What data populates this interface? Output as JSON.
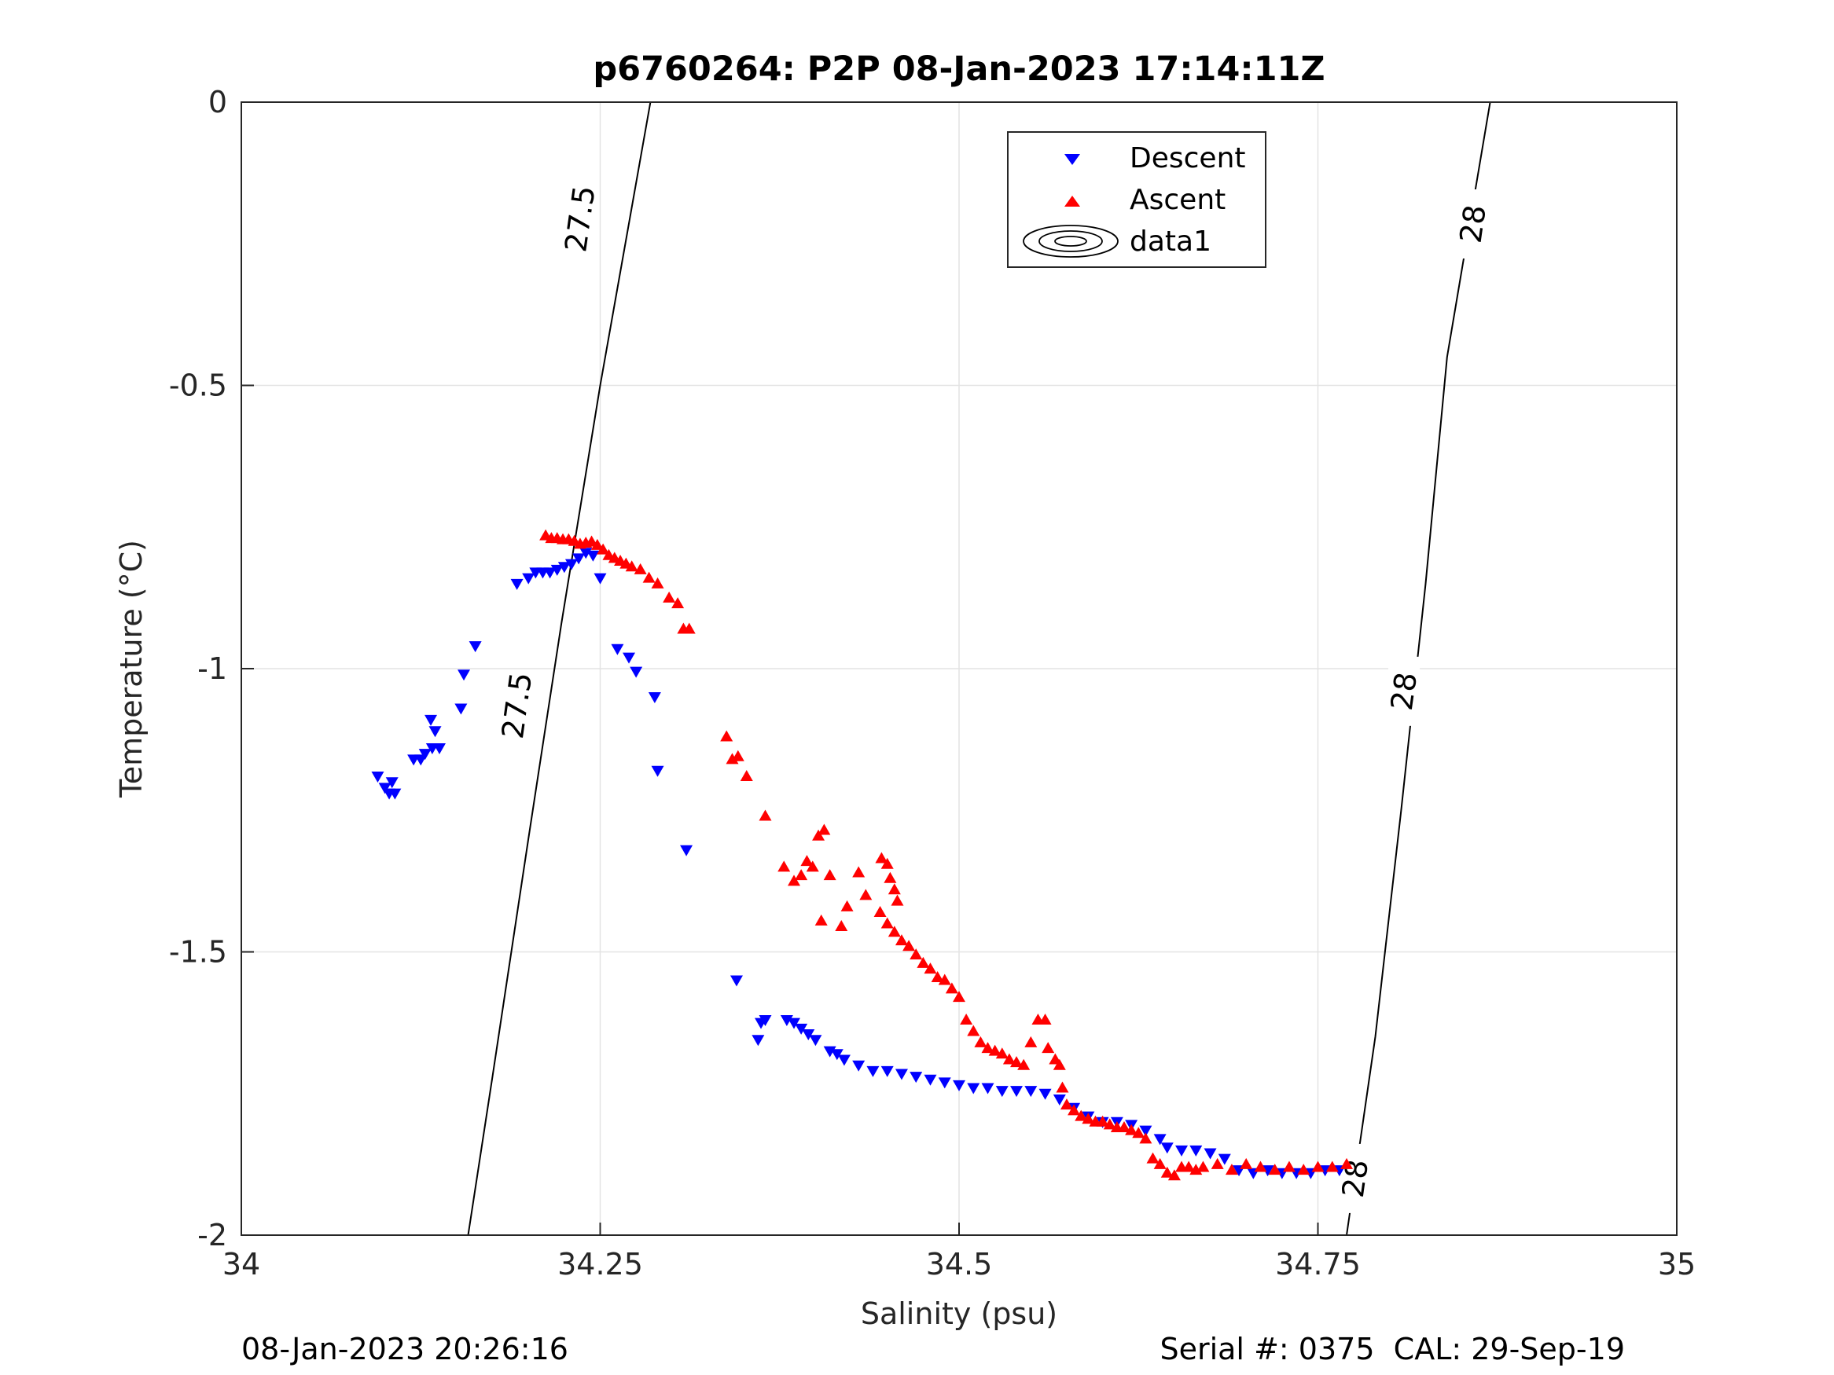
{
  "chart_data": {
    "type": "scatter",
    "title": "p6760264: P2P 08-Jan-2023 17:14:11Z",
    "xlabel": "Salinity (psu)",
    "ylabel": "Temperature (°C)",
    "xlim": [
      34,
      35
    ],
    "ylim": [
      -2,
      0
    ],
    "x_ticks": [
      34,
      34.25,
      34.5,
      34.75,
      35
    ],
    "x_tick_labels": [
      "34",
      "34.25",
      "34.5",
      "34.75",
      "35"
    ],
    "y_ticks": [
      -2,
      -1.5,
      -1,
      -0.5,
      0
    ],
    "y_tick_labels": [
      "-2",
      "-1.5",
      "-1",
      "-0.5",
      "0"
    ],
    "grid": true,
    "legend_position": "top-right",
    "series": [
      {
        "name": "Descent",
        "marker": "triangle-down",
        "color": "#0000ff",
        "points": [
          [
            34.095,
            -1.19
          ],
          [
            34.1,
            -1.21
          ],
          [
            34.103,
            -1.22
          ],
          [
            34.105,
            -1.2
          ],
          [
            34.107,
            -1.22
          ],
          [
            34.12,
            -1.16
          ],
          [
            34.125,
            -1.16
          ],
          [
            34.128,
            -1.15
          ],
          [
            34.133,
            -1.14
          ],
          [
            34.135,
            -1.11
          ],
          [
            34.132,
            -1.09
          ],
          [
            34.138,
            -1.14
          ],
          [
            34.153,
            -1.07
          ],
          [
            34.155,
            -1.01
          ],
          [
            34.163,
            -0.96
          ],
          [
            34.192,
            -0.85
          ],
          [
            34.2,
            -0.84
          ],
          [
            34.205,
            -0.83
          ],
          [
            34.21,
            -0.83
          ],
          [
            34.215,
            -0.83
          ],
          [
            34.22,
            -0.825
          ],
          [
            34.225,
            -0.82
          ],
          [
            34.23,
            -0.815
          ],
          [
            34.235,
            -0.805
          ],
          [
            34.24,
            -0.795
          ],
          [
            34.245,
            -0.8
          ],
          [
            34.25,
            -0.84
          ],
          [
            34.262,
            -0.965
          ],
          [
            34.27,
            -0.98
          ],
          [
            34.275,
            -1.005
          ],
          [
            34.288,
            -1.05
          ],
          [
            34.29,
            -1.18
          ],
          [
            34.31,
            -1.32
          ],
          [
            34.345,
            -1.55
          ],
          [
            34.362,
            -1.625
          ],
          [
            34.365,
            -1.62
          ],
          [
            34.36,
            -1.655
          ],
          [
            34.38,
            -1.62
          ],
          [
            34.385,
            -1.625
          ],
          [
            34.39,
            -1.635
          ],
          [
            34.395,
            -1.645
          ],
          [
            34.4,
            -1.655
          ],
          [
            34.41,
            -1.675
          ],
          [
            34.415,
            -1.68
          ],
          [
            34.42,
            -1.69
          ],
          [
            34.43,
            -1.7
          ],
          [
            34.44,
            -1.71
          ],
          [
            34.45,
            -1.71
          ],
          [
            34.46,
            -1.715
          ],
          [
            34.47,
            -1.72
          ],
          [
            34.48,
            -1.725
          ],
          [
            34.49,
            -1.73
          ],
          [
            34.5,
            -1.735
          ],
          [
            34.51,
            -1.74
          ],
          [
            34.52,
            -1.74
          ],
          [
            34.53,
            -1.745
          ],
          [
            34.54,
            -1.745
          ],
          [
            34.55,
            -1.745
          ],
          [
            34.56,
            -1.75
          ],
          [
            34.57,
            -1.76
          ],
          [
            34.58,
            -1.775
          ],
          [
            34.59,
            -1.79
          ],
          [
            34.6,
            -1.8
          ],
          [
            34.61,
            -1.8
          ],
          [
            34.62,
            -1.805
          ],
          [
            34.63,
            -1.815
          ],
          [
            34.64,
            -1.83
          ],
          [
            34.645,
            -1.845
          ],
          [
            34.655,
            -1.85
          ],
          [
            34.665,
            -1.85
          ],
          [
            34.675,
            -1.855
          ],
          [
            34.685,
            -1.865
          ],
          [
            34.695,
            -1.885
          ],
          [
            34.705,
            -1.89
          ],
          [
            34.715,
            -1.885
          ],
          [
            34.725,
            -1.89
          ],
          [
            34.735,
            -1.89
          ],
          [
            34.745,
            -1.89
          ],
          [
            34.755,
            -1.885
          ],
          [
            34.765,
            -1.885
          ]
        ]
      },
      {
        "name": "Ascent",
        "marker": "triangle-up",
        "color": "#ff0000",
        "points": [
          [
            34.212,
            -0.765
          ],
          [
            34.216,
            -0.77
          ],
          [
            34.22,
            -0.77
          ],
          [
            34.224,
            -0.772
          ],
          [
            34.228,
            -0.772
          ],
          [
            34.232,
            -0.775
          ],
          [
            34.236,
            -0.78
          ],
          [
            34.24,
            -0.778
          ],
          [
            34.244,
            -0.776
          ],
          [
            34.248,
            -0.782
          ],
          [
            34.252,
            -0.79
          ],
          [
            34.256,
            -0.8
          ],
          [
            34.26,
            -0.805
          ],
          [
            34.264,
            -0.81
          ],
          [
            34.268,
            -0.815
          ],
          [
            34.272,
            -0.82
          ],
          [
            34.278,
            -0.825
          ],
          [
            34.284,
            -0.84
          ],
          [
            34.29,
            -0.85
          ],
          [
            34.298,
            -0.875
          ],
          [
            34.304,
            -0.885
          ],
          [
            34.308,
            -0.93
          ],
          [
            34.312,
            -0.93
          ],
          [
            34.338,
            -1.12
          ],
          [
            34.342,
            -1.16
          ],
          [
            34.346,
            -1.155
          ],
          [
            34.352,
            -1.19
          ],
          [
            34.365,
            -1.26
          ],
          [
            34.378,
            -1.35
          ],
          [
            34.385,
            -1.375
          ],
          [
            34.39,
            -1.365
          ],
          [
            34.394,
            -1.34
          ],
          [
            34.398,
            -1.35
          ],
          [
            34.402,
            -1.295
          ],
          [
            34.406,
            -1.285
          ],
          [
            34.41,
            -1.365
          ],
          [
            34.404,
            -1.445
          ],
          [
            34.418,
            -1.455
          ],
          [
            34.422,
            -1.42
          ],
          [
            34.43,
            -1.36
          ],
          [
            34.435,
            -1.4
          ],
          [
            34.446,
            -1.335
          ],
          [
            34.45,
            -1.345
          ],
          [
            34.452,
            -1.37
          ],
          [
            34.455,
            -1.39
          ],
          [
            34.457,
            -1.41
          ],
          [
            34.445,
            -1.43
          ],
          [
            34.45,
            -1.45
          ],
          [
            34.455,
            -1.465
          ],
          [
            34.46,
            -1.48
          ],
          [
            34.465,
            -1.49
          ],
          [
            34.47,
            -1.505
          ],
          [
            34.475,
            -1.52
          ],
          [
            34.48,
            -1.53
          ],
          [
            34.485,
            -1.545
          ],
          [
            34.49,
            -1.55
          ],
          [
            34.495,
            -1.565
          ],
          [
            34.5,
            -1.58
          ],
          [
            34.505,
            -1.62
          ],
          [
            34.51,
            -1.64
          ],
          [
            34.515,
            -1.66
          ],
          [
            34.52,
            -1.67
          ],
          [
            34.525,
            -1.675
          ],
          [
            34.53,
            -1.68
          ],
          [
            34.535,
            -1.69
          ],
          [
            34.54,
            -1.695
          ],
          [
            34.545,
            -1.7
          ],
          [
            34.55,
            -1.66
          ],
          [
            34.555,
            -1.62
          ],
          [
            34.56,
            -1.62
          ],
          [
            34.562,
            -1.67
          ],
          [
            34.567,
            -1.69
          ],
          [
            34.57,
            -1.7
          ],
          [
            34.572,
            -1.74
          ],
          [
            34.575,
            -1.77
          ],
          [
            34.58,
            -1.78
          ],
          [
            34.585,
            -1.79
          ],
          [
            34.59,
            -1.795
          ],
          [
            34.595,
            -1.8
          ],
          [
            34.6,
            -1.8
          ],
          [
            34.605,
            -1.805
          ],
          [
            34.61,
            -1.81
          ],
          [
            34.615,
            -1.81
          ],
          [
            34.62,
            -1.815
          ],
          [
            34.625,
            -1.82
          ],
          [
            34.63,
            -1.83
          ],
          [
            34.635,
            -1.865
          ],
          [
            34.64,
            -1.875
          ],
          [
            34.645,
            -1.89
          ],
          [
            34.65,
            -1.895
          ],
          [
            34.655,
            -1.88
          ],
          [
            34.66,
            -1.88
          ],
          [
            34.665,
            -1.885
          ],
          [
            34.67,
            -1.88
          ],
          [
            34.68,
            -1.875
          ],
          [
            34.69,
            -1.885
          ],
          [
            34.7,
            -1.875
          ],
          [
            34.71,
            -1.88
          ],
          [
            34.72,
            -1.885
          ],
          [
            34.73,
            -1.88
          ],
          [
            34.74,
            -1.885
          ],
          [
            34.75,
            -1.88
          ],
          [
            34.76,
            -1.88
          ],
          [
            34.77,
            -1.875
          ]
        ]
      },
      {
        "name": "data1",
        "kind": "density-contour",
        "color": "#000000",
        "contours": [
          {
            "level": "27.5",
            "points": [
              [
                34.158,
                -2
              ],
              [
                34.175,
                -1.72
              ],
              [
                34.2,
                -1.3
              ],
              [
                34.223,
                -0.92
              ],
              [
                34.25,
                -0.5
              ],
              [
                34.285,
                0
              ]
            ],
            "labels": [
              {
                "text": "27.5",
                "x": 34.236,
                "y": -0.206
              },
              {
                "text": "27.5",
                "x": 34.192,
                "y": -1.065
              }
            ]
          },
          {
            "level": "28",
            "points": [
              [
                34.77,
                -2
              ],
              [
                34.79,
                -1.65
              ],
              [
                34.808,
                -1.25
              ],
              [
                34.825,
                -0.85
              ],
              [
                34.84,
                -0.45
              ],
              [
                34.87,
                0
              ]
            ],
            "labels": [
              {
                "text": "28",
                "x": 34.858,
                "y": -0.215
              },
              {
                "text": "28",
                "x": 34.81,
                "y": -1.04
              },
              {
                "text": "28",
                "x": 34.776,
                "y": -1.9
              }
            ]
          }
        ]
      }
    ]
  },
  "footer": {
    "timestamp": "08-Jan-2023 20:26:16",
    "serial_cal": "Serial #: 0375  CAL: 29-Sep-19"
  }
}
